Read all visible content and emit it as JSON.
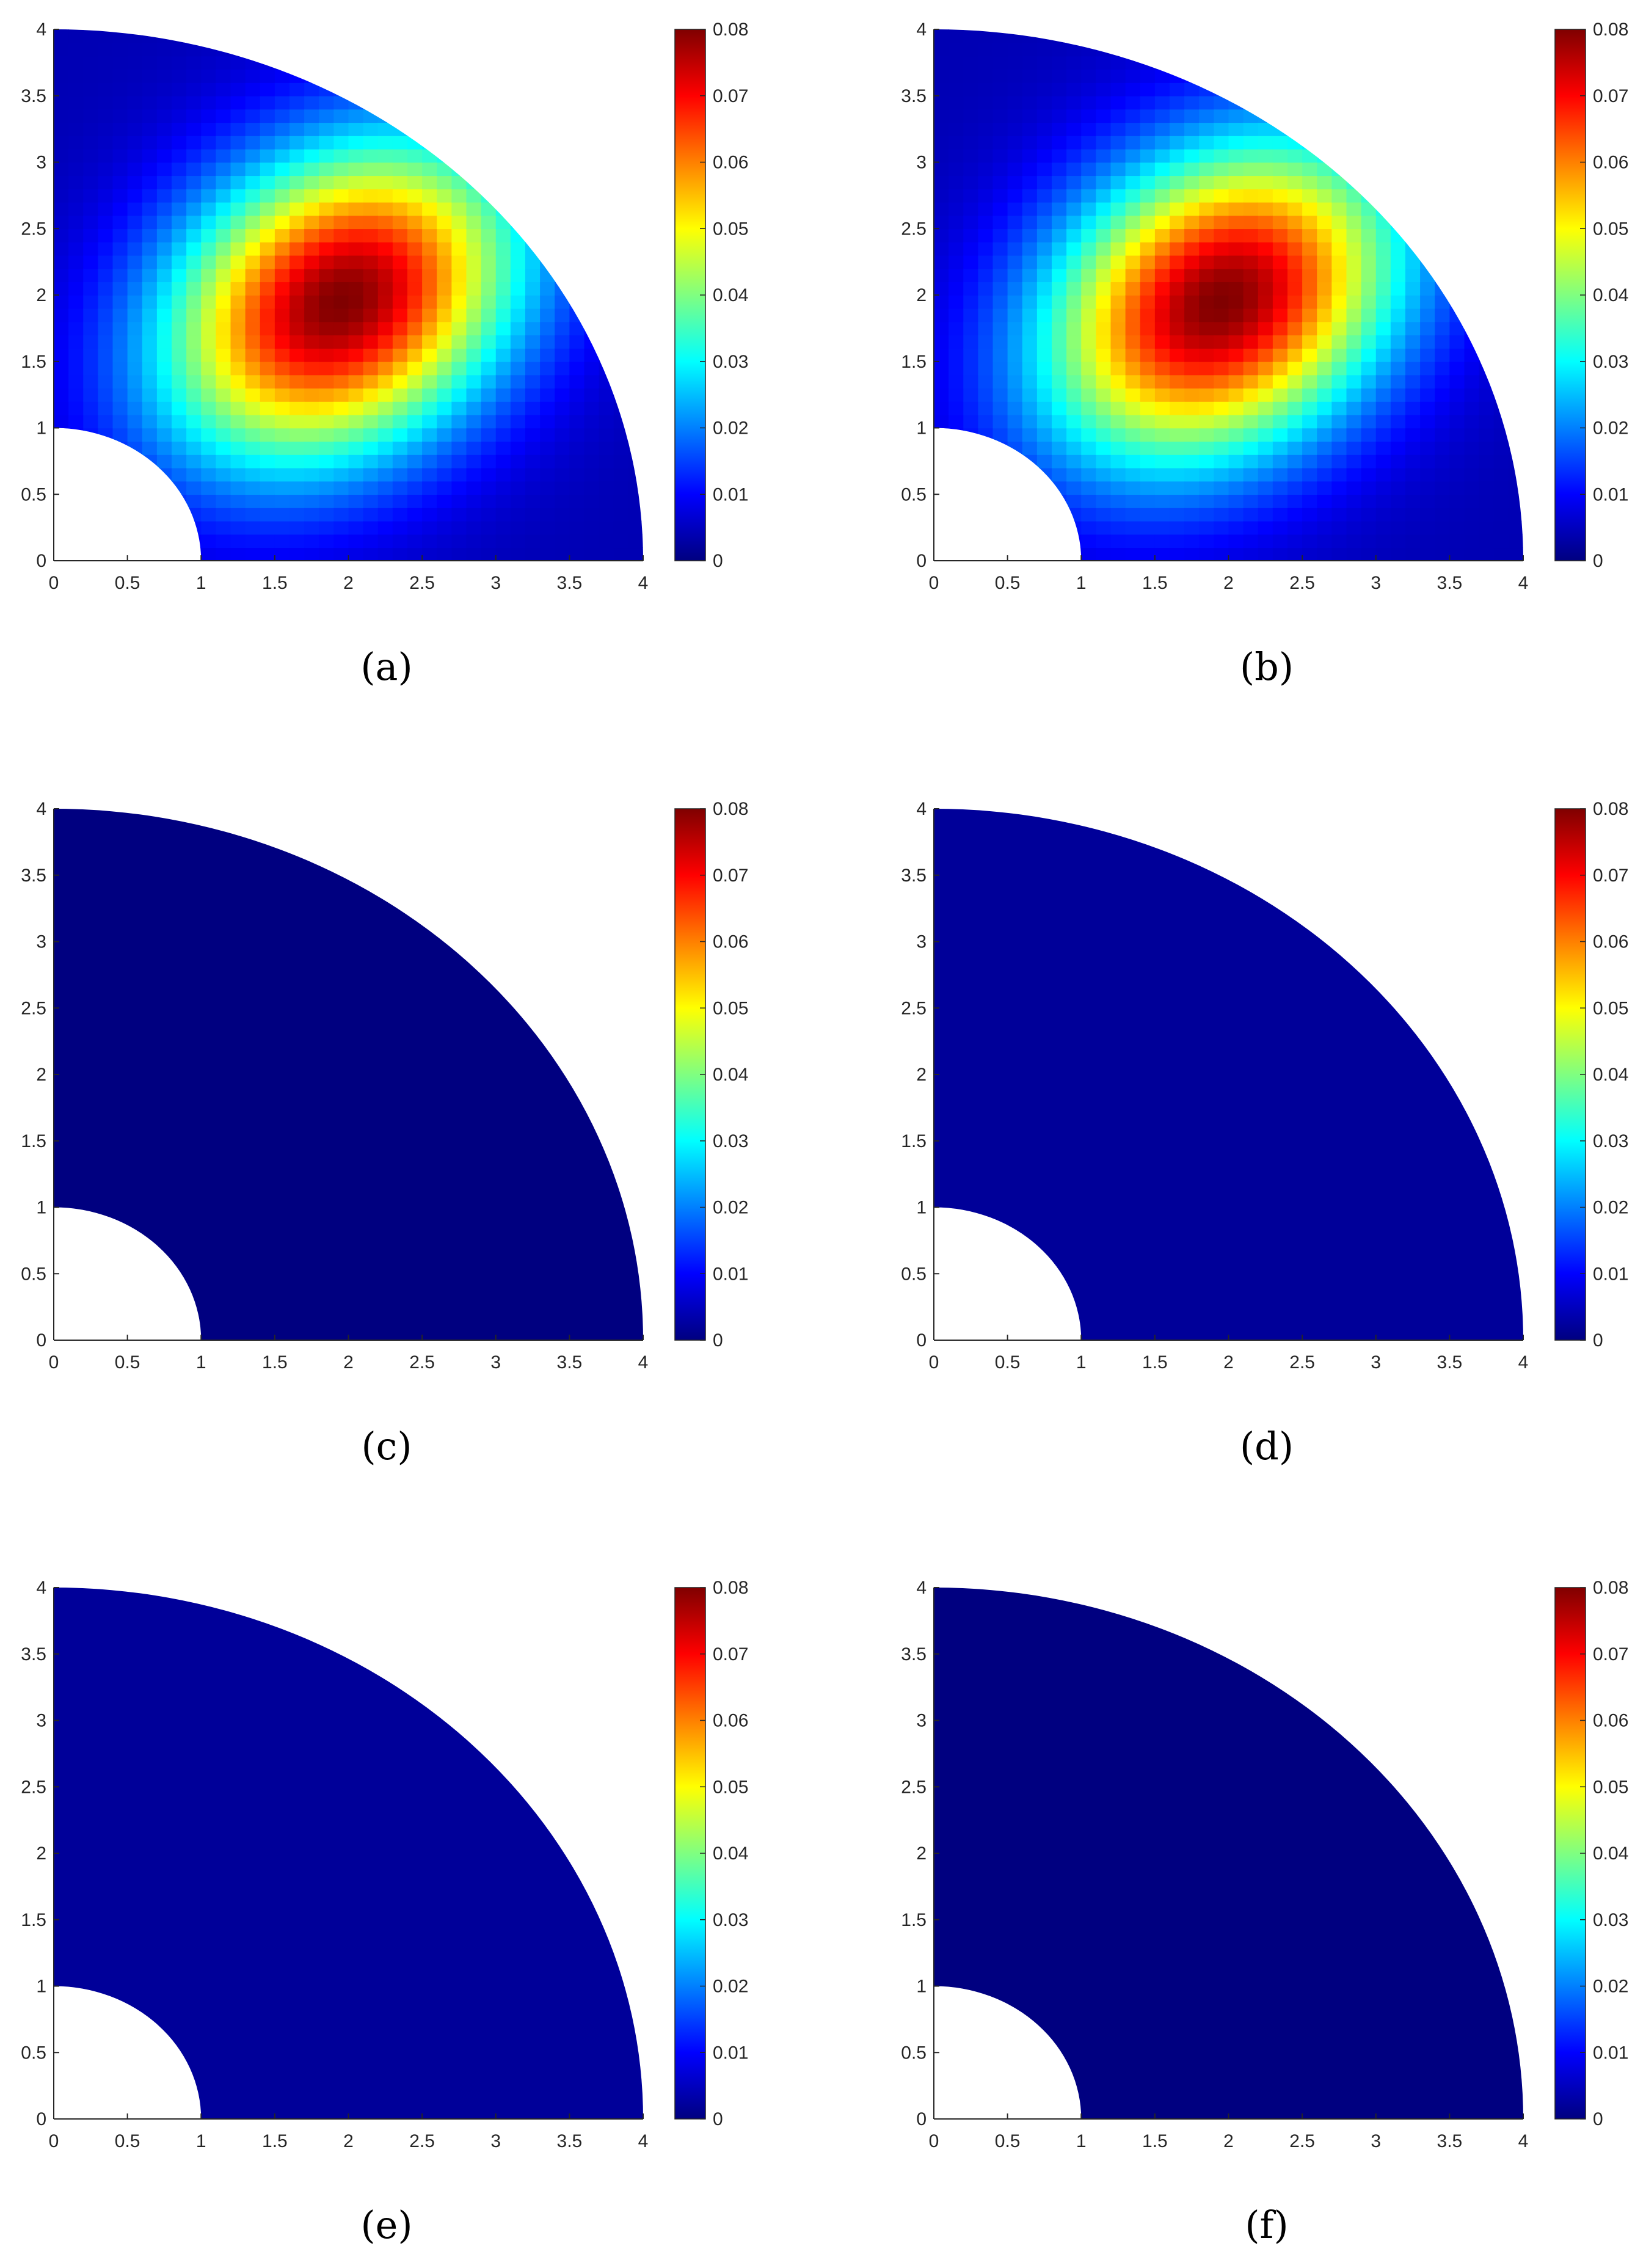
{
  "colormap": "jet",
  "colors": {
    "background": "#ffffff",
    "axis": "#262626",
    "tick_text": "#262626"
  },
  "chart_data": [
    {
      "type": "heatmap",
      "label": "(a)",
      "xlim": [
        0,
        4
      ],
      "ylim": [
        0,
        4
      ],
      "clim": [
        0,
        0.08
      ],
      "xticks": [
        "0",
        "0.5",
        "1",
        "1.5",
        "2",
        "2.5",
        "3",
        "3.5",
        "4"
      ],
      "yticks": [
        "0",
        "0.5",
        "1",
        "1.5",
        "2",
        "2.5",
        "3",
        "3.5",
        "4"
      ],
      "colorbar_ticks": [
        "0",
        "0.01",
        "0.02",
        "0.03",
        "0.04",
        "0.05",
        "0.06",
        "0.07",
        "0.08"
      ],
      "domain": "annular quarter: inner radius 1, outer radius 4",
      "field": {
        "kind": "gaussian",
        "peak": 0.08,
        "center": [
          1.95,
          1.95
        ],
        "spread": 0.75,
        "base": 0.004
      }
    },
    {
      "type": "heatmap",
      "label": "(b)",
      "xlim": [
        0,
        4
      ],
      "ylim": [
        0,
        4
      ],
      "clim": [
        0,
        0.08
      ],
      "xticks": [
        "0",
        "0.5",
        "1",
        "1.5",
        "2",
        "2.5",
        "3",
        "3.5",
        "4"
      ],
      "yticks": [
        "0",
        "0.5",
        "1",
        "1.5",
        "2",
        "2.5",
        "3",
        "3.5",
        "4"
      ],
      "colorbar_ticks": [
        "0",
        "0.01",
        "0.02",
        "0.03",
        "0.04",
        "0.05",
        "0.06",
        "0.07",
        "0.08"
      ],
      "domain": "annular quarter: inner radius 1, outer radius 4",
      "field": {
        "kind": "gaussian",
        "peak": 0.08,
        "center": [
          1.95,
          1.95
        ],
        "spread": 0.75,
        "base": 0.004
      }
    },
    {
      "type": "heatmap",
      "label": "(c)",
      "xlim": [
        0,
        4
      ],
      "ylim": [
        0,
        4
      ],
      "clim": [
        0,
        0.08
      ],
      "xticks": [
        "0",
        "0.5",
        "1",
        "1.5",
        "2",
        "2.5",
        "3",
        "3.5",
        "4"
      ],
      "yticks": [
        "0",
        "0.5",
        "1",
        "1.5",
        "2",
        "2.5",
        "3",
        "3.5",
        "4"
      ],
      "colorbar_ticks": [
        "0",
        "0.01",
        "0.02",
        "0.03",
        "0.04",
        "0.05",
        "0.06",
        "0.07",
        "0.08"
      ],
      "domain": "annular quarter: inner radius 1, outer radius 4",
      "field": {
        "kind": "uniform",
        "value": 0.0
      }
    },
    {
      "type": "heatmap",
      "label": "(d)",
      "xlim": [
        0,
        4
      ],
      "ylim": [
        0,
        4
      ],
      "clim": [
        0,
        0.08
      ],
      "xticks": [
        "0",
        "0.5",
        "1",
        "1.5",
        "2",
        "2.5",
        "3",
        "3.5",
        "4"
      ],
      "yticks": [
        "0",
        "0.5",
        "1",
        "1.5",
        "2",
        "2.5",
        "3",
        "3.5",
        "4"
      ],
      "colorbar_ticks": [
        "0",
        "0.01",
        "0.02",
        "0.03",
        "0.04",
        "0.05",
        "0.06",
        "0.07",
        "0.08"
      ],
      "domain": "annular quarter: inner radius 1, outer radius 4",
      "field": {
        "kind": "uniform",
        "value": 0.002
      }
    },
    {
      "type": "heatmap",
      "label": "(e)",
      "xlim": [
        0,
        4
      ],
      "ylim": [
        0,
        4
      ],
      "clim": [
        0,
        0.08
      ],
      "xticks": [
        "0",
        "0.5",
        "1",
        "1.5",
        "2",
        "2.5",
        "3",
        "3.5",
        "4"
      ],
      "yticks": [
        "0",
        "0.5",
        "1",
        "1.5",
        "2",
        "2.5",
        "3",
        "3.5",
        "4"
      ],
      "colorbar_ticks": [
        "0",
        "0.01",
        "0.02",
        "0.03",
        "0.04",
        "0.05",
        "0.06",
        "0.07",
        "0.08"
      ],
      "domain": "annular quarter: inner radius 1, outer radius 4",
      "field": {
        "kind": "uniform",
        "value": 0.002
      }
    },
    {
      "type": "heatmap",
      "label": "(f)",
      "xlim": [
        0,
        4
      ],
      "ylim": [
        0,
        4
      ],
      "clim": [
        0,
        0.08
      ],
      "xticks": [
        "0",
        "0.5",
        "1",
        "1.5",
        "2",
        "2.5",
        "3",
        "3.5",
        "4"
      ],
      "yticks": [
        "0",
        "0.5",
        "1",
        "1.5",
        "2",
        "2.5",
        "3",
        "3.5",
        "4"
      ],
      "colorbar_ticks": [
        "0",
        "0.01",
        "0.02",
        "0.03",
        "0.04",
        "0.05",
        "0.06",
        "0.07",
        "0.08"
      ],
      "domain": "annular quarter: inner radius 1, outer radius 4",
      "field": {
        "kind": "uniform",
        "value": 0.0
      }
    }
  ]
}
